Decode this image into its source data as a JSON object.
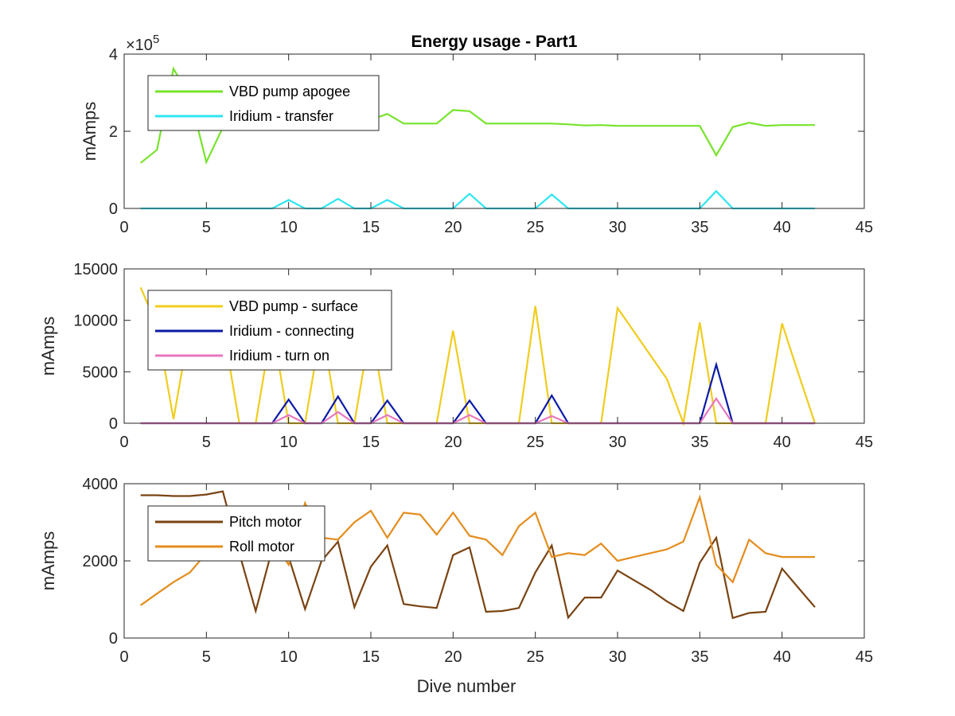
{
  "chart_data": [
    {
      "type": "line",
      "title": "Energy usage - Part1",
      "ylabel": "mAmps",
      "xlabel": "",
      "xlim": [
        0,
        45
      ],
      "ylim": [
        0,
        400000
      ],
      "xticks": [
        0,
        5,
        10,
        15,
        20,
        25,
        30,
        35,
        40,
        45
      ],
      "yticks": [
        0,
        200000,
        400000
      ],
      "ytick_labels": [
        "0",
        "2",
        "4"
      ],
      "y_exponent_base": "×10",
      "y_exponent_power": "5",
      "legend_position": "top-left",
      "series": [
        {
          "name": "VBD pump apogee",
          "color": "#77e32b",
          "x": [
            1,
            2,
            3,
            4,
            5,
            6,
            7,
            8,
            9,
            10,
            11,
            12,
            13,
            14,
            15,
            16,
            17,
            18,
            19,
            20,
            21,
            22,
            23,
            24,
            25,
            26,
            27,
            28,
            29,
            30,
            31,
            32,
            33,
            34,
            35,
            36,
            37,
            38,
            39,
            40,
            41,
            42
          ],
          "y": [
            118000,
            152000,
            362000,
            290000,
            120000,
            210000,
            225000,
            230000,
            235000,
            240000,
            240000,
            235000,
            230000,
            230000,
            230000,
            245000,
            220000,
            220000,
            220000,
            255000,
            252000,
            220000,
            220000,
            220000,
            220000,
            220000,
            218000,
            215000,
            216000,
            214000,
            214000,
            214000,
            214000,
            214000,
            214000,
            138000,
            211000,
            222000,
            214000,
            216000,
            216000,
            216000
          ]
        },
        {
          "name": "Iridium - transfer",
          "color": "#2ee6f2",
          "x": [
            1,
            2,
            3,
            4,
            5,
            6,
            7,
            8,
            9,
            10,
            11,
            12,
            13,
            14,
            15,
            16,
            17,
            18,
            19,
            20,
            21,
            22,
            23,
            24,
            25,
            26,
            27,
            28,
            29,
            30,
            31,
            32,
            33,
            34,
            35,
            36,
            37,
            38,
            39,
            40,
            41,
            42
          ],
          "y": [
            0,
            0,
            0,
            0,
            0,
            0,
            0,
            0,
            0,
            22000,
            0,
            0,
            25000,
            0,
            0,
            22000,
            0,
            0,
            0,
            0,
            38000,
            0,
            0,
            0,
            0,
            36000,
            0,
            0,
            0,
            0,
            0,
            0,
            0,
            0,
            0,
            45000,
            0,
            0,
            0,
            0,
            0,
            0
          ]
        }
      ]
    },
    {
      "type": "line",
      "title": "",
      "ylabel": "mAmps",
      "xlabel": "",
      "xlim": [
        0,
        45
      ],
      "ylim": [
        0,
        15000
      ],
      "xticks": [
        0,
        5,
        10,
        15,
        20,
        25,
        30,
        35,
        40,
        45
      ],
      "yticks": [
        0,
        5000,
        10000,
        15000
      ],
      "ytick_labels": [
        "0",
        "5000",
        "10000",
        "15000"
      ],
      "legend_position": "top-left",
      "series": [
        {
          "name": "VBD pump - surface",
          "color": "#f1cc1c",
          "x": [
            1,
            2,
            3,
            4,
            5,
            6,
            7,
            8,
            9,
            10,
            11,
            12,
            13,
            14,
            15,
            16,
            17,
            18,
            19,
            20,
            21,
            22,
            23,
            24,
            25,
            26,
            27,
            28,
            29,
            30,
            31,
            32,
            33,
            34,
            35,
            36,
            37,
            38,
            39,
            40,
            41,
            42
          ],
          "y": [
            13200,
            9500,
            400,
            9500,
            9500,
            9500,
            0,
            0,
            9500,
            0,
            0,
            9500,
            0,
            0,
            9500,
            0,
            0,
            0,
            0,
            9000,
            0,
            0,
            0,
            0,
            11400,
            0,
            0,
            0,
            0,
            11200,
            8900,
            6600,
            4300,
            0,
            9800,
            0,
            0,
            0,
            0,
            9700,
            4800,
            0
          ]
        },
        {
          "name": "Iridium - connecting",
          "color": "#0b1aa6",
          "x": [
            1,
            2,
            3,
            4,
            5,
            6,
            7,
            8,
            9,
            10,
            11,
            12,
            13,
            14,
            15,
            16,
            17,
            18,
            19,
            20,
            21,
            22,
            23,
            24,
            25,
            26,
            27,
            28,
            29,
            30,
            31,
            32,
            33,
            34,
            35,
            36,
            37,
            38,
            39,
            40,
            41,
            42
          ],
          "y": [
            0,
            0,
            0,
            0,
            0,
            0,
            0,
            0,
            0,
            2300,
            0,
            0,
            2600,
            0,
            0,
            2200,
            0,
            0,
            0,
            0,
            2200,
            0,
            0,
            0,
            0,
            2700,
            0,
            0,
            0,
            0,
            0,
            0,
            0,
            0,
            0,
            5700,
            0,
            0,
            0,
            0,
            0,
            0
          ]
        },
        {
          "name": "Iridium - turn on",
          "color": "#e876c0",
          "x": [
            1,
            2,
            3,
            4,
            5,
            6,
            7,
            8,
            9,
            10,
            11,
            12,
            13,
            14,
            15,
            16,
            17,
            18,
            19,
            20,
            21,
            22,
            23,
            24,
            25,
            26,
            27,
            28,
            29,
            30,
            31,
            32,
            33,
            34,
            35,
            36,
            37,
            38,
            39,
            40,
            41,
            42
          ],
          "y": [
            0,
            0,
            0,
            0,
            0,
            0,
            0,
            0,
            0,
            800,
            0,
            0,
            1100,
            0,
            0,
            800,
            0,
            0,
            0,
            0,
            800,
            0,
            0,
            0,
            0,
            700,
            0,
            0,
            0,
            0,
            0,
            0,
            0,
            0,
            0,
            2400,
            0,
            0,
            0,
            0,
            0,
            0
          ]
        }
      ]
    },
    {
      "type": "line",
      "title": "",
      "ylabel": "mAmps",
      "xlabel": "Dive number",
      "xlim": [
        0,
        45
      ],
      "ylim": [
        0,
        4000
      ],
      "xticks": [
        0,
        5,
        10,
        15,
        20,
        25,
        30,
        35,
        40,
        45
      ],
      "yticks": [
        0,
        2000,
        4000
      ],
      "ytick_labels": [
        "0",
        "2000",
        "4000"
      ],
      "legend_position": "top-left",
      "series": [
        {
          "name": "Pitch motor",
          "color": "#7a4312",
          "x": [
            1,
            2,
            3,
            4,
            5,
            6,
            7,
            8,
            9,
            10,
            11,
            12,
            13,
            14,
            15,
            16,
            17,
            18,
            19,
            20,
            21,
            22,
            23,
            24,
            25,
            26,
            27,
            28,
            29,
            30,
            31,
            32,
            33,
            34,
            35,
            36,
            37,
            38,
            39,
            40,
            41,
            42
          ],
          "y": [
            3700,
            3700,
            3680,
            3680,
            3720,
            3800,
            2200,
            700,
            2300,
            2100,
            750,
            2000,
            2500,
            800,
            1850,
            2400,
            880,
            820,
            780,
            2150,
            2350,
            680,
            700,
            780,
            1700,
            2400,
            530,
            1050,
            1050,
            1750,
            1500,
            1250,
            950,
            700,
            1950,
            2600,
            520,
            650,
            680,
            1800,
            1300,
            800
          ]
        },
        {
          "name": "Roll motor",
          "color": "#e48d1e",
          "x": [
            1,
            2,
            3,
            4,
            5,
            6,
            7,
            8,
            9,
            10,
            11,
            12,
            13,
            14,
            15,
            16,
            17,
            18,
            19,
            20,
            21,
            22,
            23,
            24,
            25,
            26,
            27,
            28,
            29,
            30,
            31,
            32,
            33,
            34,
            35,
            36,
            37,
            38,
            39,
            40,
            41,
            42
          ],
          "y": [
            850,
            1150,
            1450,
            1700,
            2200,
            2500,
            2400,
            2500,
            2550,
            1900,
            3500,
            2600,
            2550,
            3000,
            3300,
            2600,
            3250,
            3200,
            2680,
            3250,
            2650,
            2550,
            2150,
            2900,
            3250,
            2100,
            2200,
            2150,
            2450,
            2000,
            2100,
            2200,
            2300,
            2500,
            3650,
            1900,
            1450,
            2550,
            2200,
            2100,
            2100,
            2100
          ]
        }
      ]
    }
  ]
}
